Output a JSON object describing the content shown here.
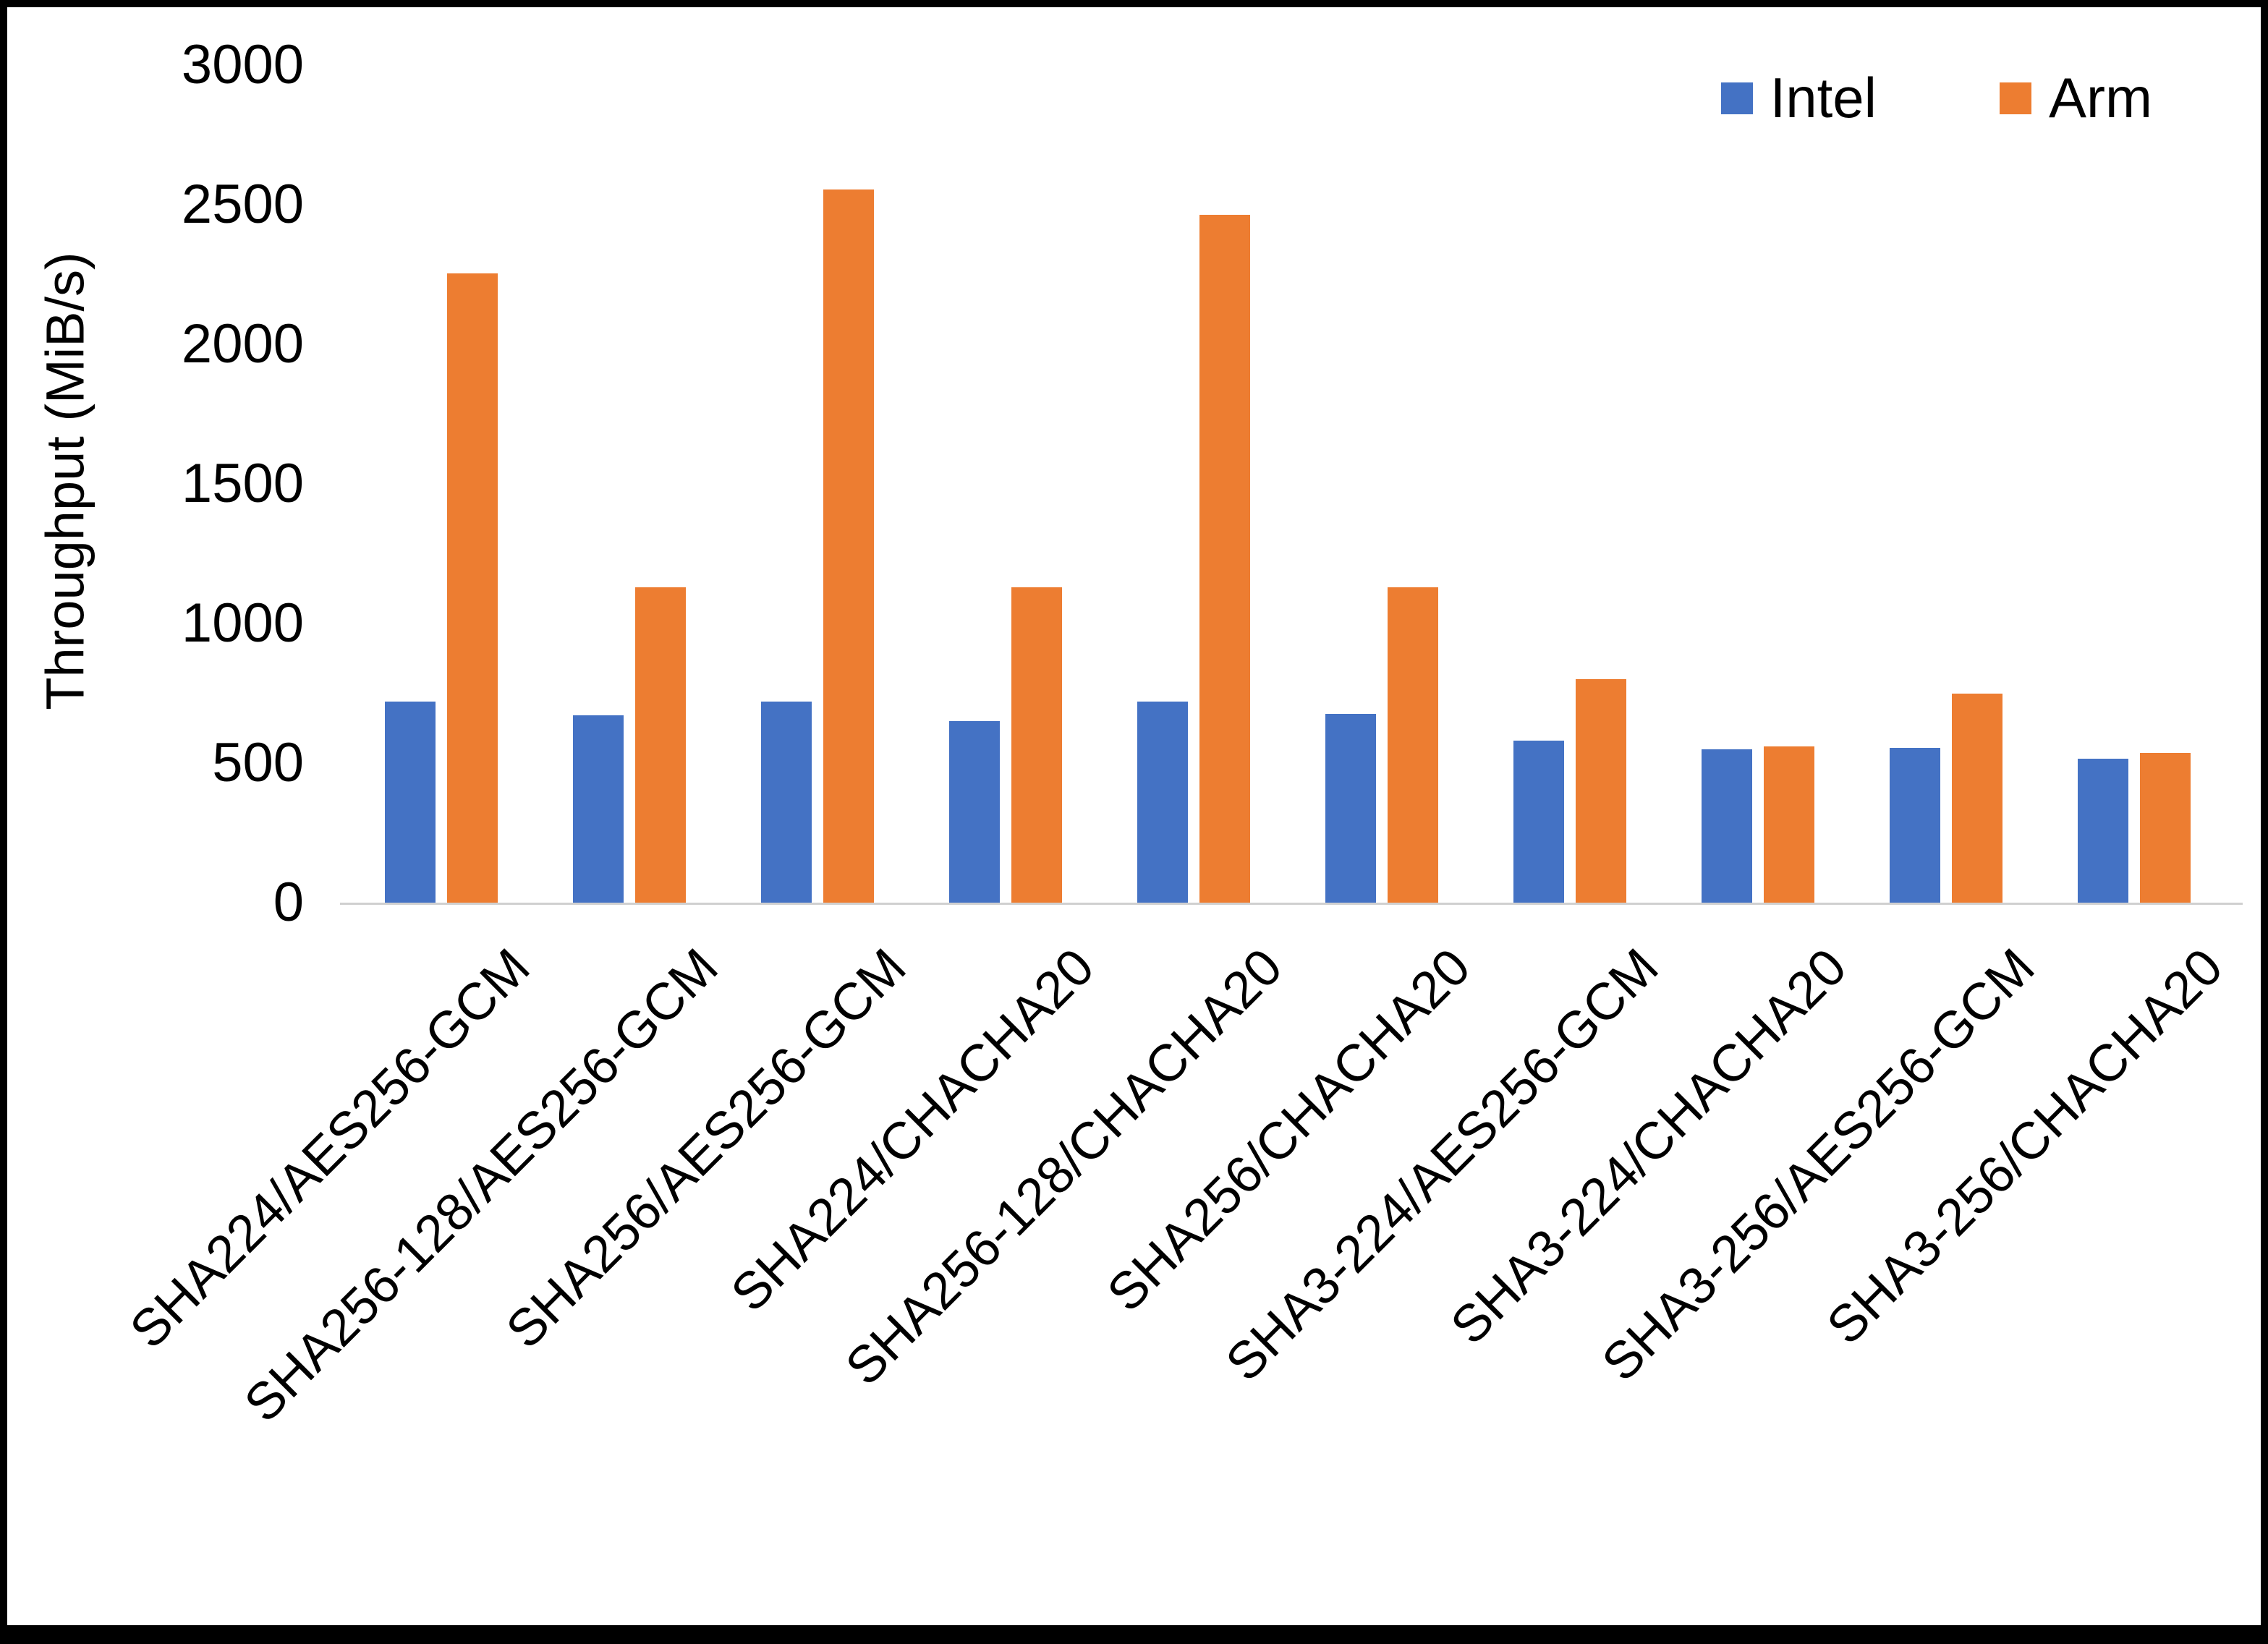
{
  "chart_data": {
    "type": "bar",
    "title": "",
    "xlabel": "",
    "ylabel": "Throughput (MiB/s)",
    "ylim": [
      0,
      3000
    ],
    "ytick_step": 500,
    "grid": false,
    "legend_position": "top-right",
    "categories": [
      "SHA224/AES256-GCM",
      "SHA256-128/AES256-GCM",
      "SHA256/AES256-GCM",
      "SHA224/CHACHA20",
      "SHA256-128/CHACHA20",
      "SHA256/CHACHA20",
      "SHA3-224/AES256-GCM",
      "SHA3-224/CHACHA20",
      "SHA3-256/AES256-GCM",
      "SHA3-256/CHACHA20"
    ],
    "series": [
      {
        "name": "Intel",
        "color": "#4472C4",
        "values": [
          720,
          670,
          720,
          650,
          720,
          675,
          580,
          550,
          555,
          515
        ]
      },
      {
        "name": "Arm",
        "color": "#ED7D31",
        "values": [
          2255,
          1130,
          2555,
          1130,
          2465,
          1130,
          800,
          560,
          750,
          535
        ]
      }
    ]
  }
}
